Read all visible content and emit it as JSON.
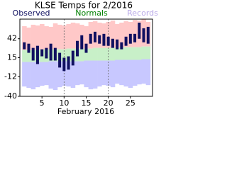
{
  "chart_data": {
    "type": "range",
    "title": "KLSE Temps for 2/2016",
    "xlabel": "February 2016",
    "x": [
      1,
      2,
      3,
      4,
      5,
      6,
      7,
      8,
      9,
      10,
      11,
      12,
      13,
      14,
      15,
      16,
      17,
      18,
      19,
      20,
      21,
      22,
      23,
      24,
      25,
      26,
      27,
      28,
      29
    ],
    "xlim": [
      0,
      30
    ],
    "xticks": [
      5,
      10,
      15,
      20,
      25
    ],
    "xgrid": [
      10,
      20
    ],
    "ylim": [
      -40,
      70
    ],
    "yticks": [
      42,
      15,
      -12,
      -40
    ],
    "series": [
      {
        "name": "Records",
        "color": "#b8a8e8",
        "upper_color": "#ffc8c8",
        "lower_color": "#c8c8ff",
        "low": [
          -26,
          -28,
          -30,
          -27,
          -25,
          -24,
          -29,
          -31,
          -27,
          -25,
          -26,
          -28,
          -24,
          -23,
          -27,
          -30,
          -29,
          -26,
          -24,
          -25,
          -27,
          -22,
          -24,
          -26,
          -28,
          -25,
          -23,
          -22,
          -24
        ],
        "high": [
          60,
          58,
          62,
          61,
          63,
          60,
          59,
          64,
          62,
          61,
          63,
          65,
          64,
          62,
          60,
          66,
          67,
          65,
          64,
          66,
          68,
          63,
          65,
          67,
          66,
          69,
          68,
          70,
          66
        ]
      },
      {
        "name": "Normals",
        "color": "#008000",
        "low": [
          9,
          9,
          9,
          9,
          9,
          9,
          10,
          10,
          10,
          10,
          10,
          10,
          10,
          10,
          11,
          11,
          11,
          11,
          11,
          11,
          11,
          12,
          12,
          12,
          12,
          12,
          12,
          13,
          13
        ],
        "high": [
          26,
          26,
          26,
          26,
          27,
          27,
          27,
          27,
          27,
          27,
          28,
          28,
          28,
          28,
          28,
          28,
          29,
          29,
          29,
          29,
          29,
          29,
          30,
          30,
          30,
          30,
          30,
          31,
          31
        ]
      },
      {
        "name": "Observed",
        "color": "#101060",
        "low": [
          27,
          22,
          11,
          6,
          17,
          14,
          11,
          11,
          1,
          -4,
          -2,
          4,
          17,
          27,
          22,
          35,
          37,
          35,
          32,
          32,
          29,
          27,
          27,
          32,
          35,
          37,
          42,
          37,
          35
        ],
        "high": [
          37,
          35,
          29,
          32,
          27,
          29,
          35,
          29,
          22,
          15,
          17,
          25,
          39,
          47,
          35,
          49,
          52,
          47,
          49,
          45,
          42,
          41,
          37,
          45,
          49,
          49,
          65,
          57,
          59
        ]
      }
    ]
  }
}
